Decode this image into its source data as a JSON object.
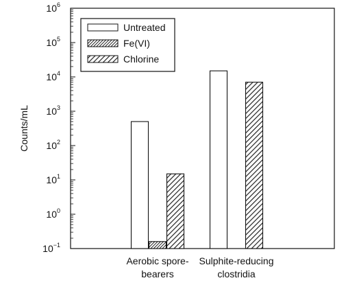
{
  "chart_data": {
    "type": "bar",
    "yscale": "log",
    "ylim": [
      0.1,
      1000000
    ],
    "ylabel": "Counts/mL",
    "xlabel": "",
    "yticks": [
      {
        "value": 0.1,
        "base": "10",
        "exp": "−1"
      },
      {
        "value": 1,
        "base": "10",
        "exp": "0"
      },
      {
        "value": 10,
        "base": "10",
        "exp": "1"
      },
      {
        "value": 100,
        "base": "10",
        "exp": "2"
      },
      {
        "value": 1000,
        "base": "10",
        "exp": "3"
      },
      {
        "value": 10000,
        "base": "10",
        "exp": "4"
      },
      {
        "value": 100000,
        "base": "10",
        "exp": "5"
      },
      {
        "value": 1000000,
        "base": "10",
        "exp": "6"
      }
    ],
    "categories": [
      {
        "lines": [
          "Aerobic spore-",
          "bearers"
        ]
      },
      {
        "lines": [
          "Sulphite-reducing",
          "clostridia"
        ]
      }
    ],
    "series": [
      {
        "name": "Untreated",
        "pattern": "blank",
        "values": [
          500,
          15000
        ]
      },
      {
        "name": "Fe(VI)",
        "pattern": "dense-hatch",
        "values": [
          0.16,
          null
        ]
      },
      {
        "name": "Chlorine",
        "pattern": "hatch",
        "values": [
          15,
          7000
        ]
      }
    ],
    "legend": {
      "position": "top-left"
    },
    "grid": false
  }
}
